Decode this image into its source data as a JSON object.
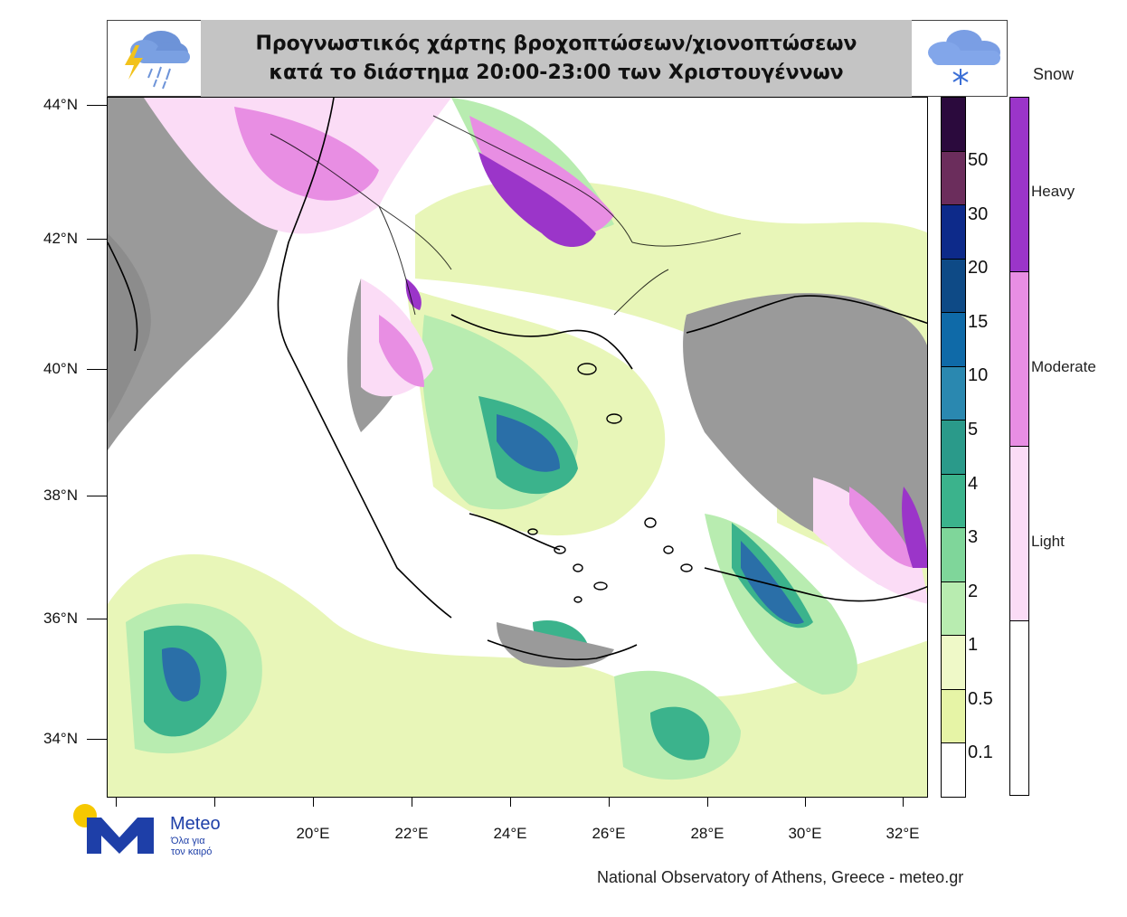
{
  "title": {
    "line1": "Προγνωστικός χάρτης βροχοπτώσεων/χιονοπτώσεων",
    "line2": "κατά το διάστημα 20:00-23:00 των Χριστουγέννων"
  },
  "map": {
    "lat_labels": [
      "44°N",
      "42°N",
      "40°N",
      "38°N",
      "36°N",
      "34°N"
    ],
    "lon_labels": [
      "20°E",
      "22°E",
      "24°E",
      "26°E",
      "28°E",
      "30°E",
      "32°E"
    ]
  },
  "rain_legend": {
    "levels": [
      "50",
      "30",
      "20",
      "15",
      "10",
      "5",
      "4",
      "3",
      "2",
      "1",
      "0.5",
      "0.1"
    ],
    "colors": [
      "#2b0a3d",
      "#6b2d5c",
      "#0d2a8a",
      "#0e4a86",
      "#0f6aa8",
      "#2a88b0",
      "#2a9a8a",
      "#3bb38c",
      "#7fd69a",
      "#b8ecb0",
      "#eff9c8",
      "#e6f4a6",
      "#ffffff"
    ]
  },
  "snow_legend": {
    "title": "Snow",
    "levels": [
      "Heavy",
      "Moderate",
      "Light"
    ],
    "colors": [
      "#9b35c9",
      "#e88ee3",
      "#fbdcf6",
      "#ffffff"
    ]
  },
  "logo": {
    "name": "Meteo",
    "tagline_line1": "Όλα για",
    "tagline_line2": "τον καιρό"
  },
  "credit": "National Observatory of Athens, Greece - meteo.gr",
  "icons": [
    "thunder-rain-icon",
    "snow-cloud-icon"
  ]
}
